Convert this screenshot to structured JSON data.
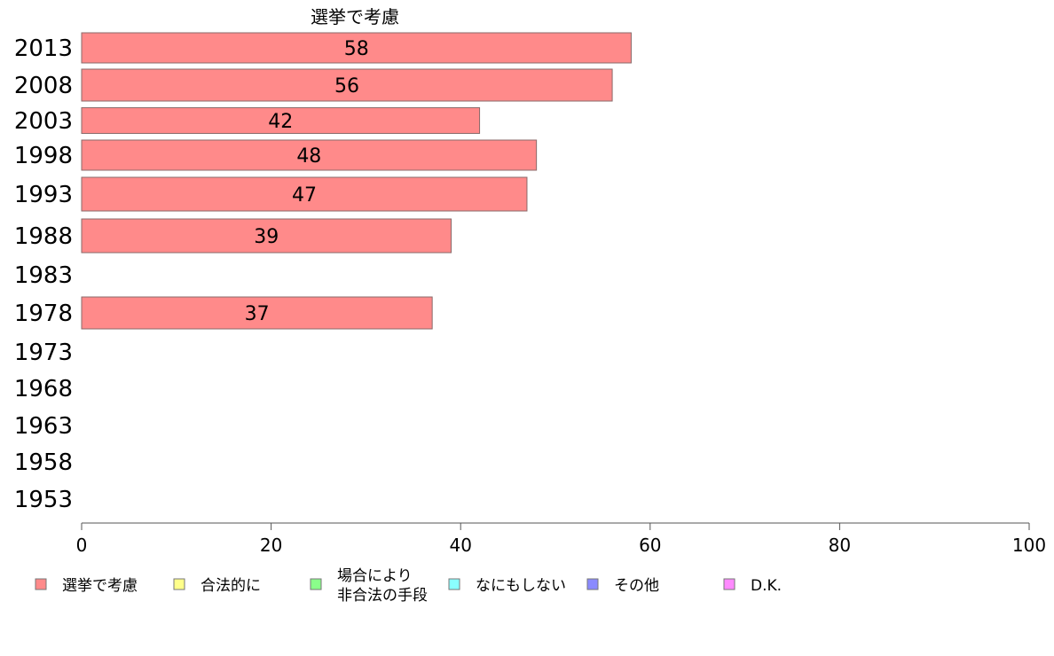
{
  "chart_data": {
    "type": "bar",
    "orientation": "horizontal",
    "title": "選挙で考慮",
    "xlabel": "",
    "ylabel": "",
    "xlim": [
      0,
      100
    ],
    "x_ticks": [
      "0",
      "20",
      "40",
      "60",
      "80",
      "100"
    ],
    "grid": false,
    "categories": [
      "2013",
      "2008",
      "2003",
      "1998",
      "1993",
      "1988",
      "1983",
      "1978",
      "1973",
      "1968",
      "1963",
      "1958",
      "1953"
    ],
    "series": [
      {
        "name": "選挙で考慮",
        "color": "#ff8a8a",
        "values": [
          58,
          56,
          42,
          48,
          47,
          39,
          null,
          37,
          null,
          null,
          null,
          null,
          null
        ]
      }
    ],
    "legend_position": "bottom",
    "legend": [
      {
        "label": "選挙で考慮",
        "color": "#ff8a8a"
      },
      {
        "label": "合法的に",
        "color": "#ffff8a"
      },
      {
        "label": "場合により\n非合法の手段",
        "color": "#8aff8a"
      },
      {
        "label": "なにもしない",
        "color": "#8affff"
      },
      {
        "label": "その他",
        "color": "#8a8aff"
      },
      {
        "label": "D.K.",
        "color": "#ff8aff"
      }
    ]
  }
}
